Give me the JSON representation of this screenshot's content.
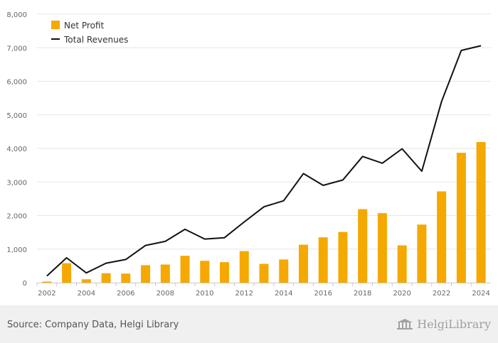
{
  "chart_data": {
    "type": "bar",
    "categories": [
      "2002",
      "2003",
      "2004",
      "2005",
      "2006",
      "2007",
      "2008",
      "2009",
      "2010",
      "2011",
      "2012",
      "2013",
      "2014",
      "2015",
      "2016",
      "2017",
      "2018",
      "2019",
      "2020",
      "2021",
      "2022",
      "2023",
      "2024"
    ],
    "x_tick_labels": [
      "2002",
      "2004",
      "2006",
      "2008",
      "2010",
      "2012",
      "2014",
      "2016",
      "2018",
      "2020",
      "2022",
      "2024"
    ],
    "y_tick_labels": [
      "0",
      "1,000",
      "2,000",
      "3,000",
      "4,000",
      "5,000",
      "6,000",
      "7,000",
      "8,000"
    ],
    "ylim": [
      0,
      8000
    ],
    "grid": true,
    "legend_position": "top-left",
    "series": [
      {
        "name": "Net Profit",
        "type": "bar",
        "color": "#f5a800",
        "values": [
          30,
          580,
          100,
          280,
          270,
          520,
          540,
          800,
          650,
          610,
          940,
          560,
          690,
          1130,
          1350,
          1510,
          2190,
          2070,
          1110,
          1730,
          2720,
          3870,
          4190
        ]
      },
      {
        "name": "Total Revenues",
        "type": "line",
        "color": "#111111",
        "values": [
          200,
          740,
          290,
          580,
          690,
          1110,
          1230,
          1590,
          1300,
          1340,
          1810,
          2260,
          2440,
          3250,
          2900,
          3060,
          3760,
          3560,
          3990,
          3320,
          5400,
          6920,
          7060
        ]
      }
    ]
  },
  "footer": {
    "source": "Source: Company Data, Helgi Library",
    "logo_text": "HelgiLibrary"
  }
}
